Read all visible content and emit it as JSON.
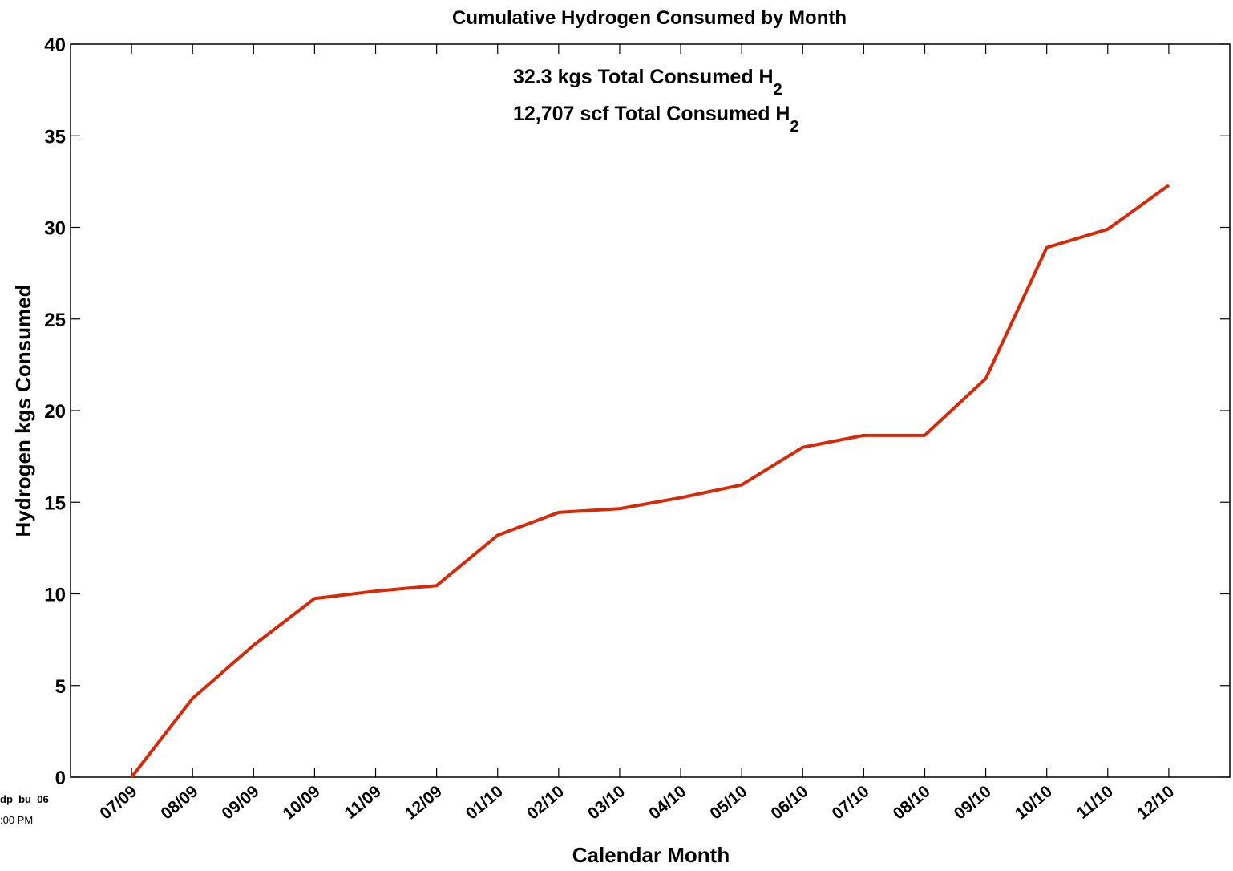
{
  "chart_data": {
    "type": "line",
    "title": "Cumulative Hydrogen Consumed by Month",
    "xlabel": "Calendar Month",
    "ylabel": "Hydrogen kgs Consumed",
    "categories": [
      "07/09",
      "08/09",
      "09/09",
      "10/09",
      "11/09",
      "12/09",
      "01/10",
      "02/10",
      "03/10",
      "04/10",
      "05/10",
      "06/10",
      "07/10",
      "08/10",
      "09/10",
      "10/10",
      "11/10",
      "12/10"
    ],
    "series": [
      {
        "name": "Hydrogen kgs Consumed",
        "color": "#d42a0a",
        "values": [
          0,
          4.3,
          7.2,
          9.75,
          10.15,
          10.45,
          13.2,
          14.45,
          14.65,
          15.25,
          15.95,
          18.0,
          18.65,
          18.65,
          21.75,
          28.9,
          29.9,
          32.3
        ]
      }
    ],
    "ylim": [
      0,
      40
    ],
    "yticks": [
      0,
      5,
      10,
      15,
      20,
      25,
      30,
      35,
      40
    ],
    "grid": false,
    "annotations": [
      {
        "text": "32.3 kgs Total Consumed H",
        "sub": "2"
      },
      {
        "text": "12,707 scf Total Consumed H",
        "sub": "2"
      }
    ],
    "footer_labels": [
      "dp_bu_06",
      ":00 PM"
    ]
  }
}
